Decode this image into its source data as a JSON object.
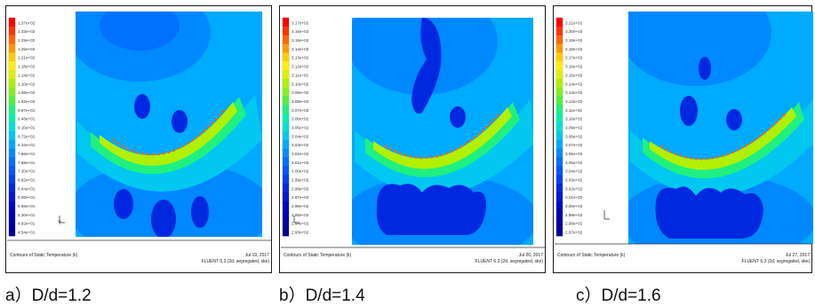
{
  "panels": [
    {
      "caption": "a）D/d=1.2",
      "footer_left": "Contours of Static Temperature (k)",
      "footer_date": "Jul 19, 2017",
      "footer_solver": "FLUENT 6.3 (2d, segregated, ske)",
      "legend_labels": [
        "1.37e+02",
        "1.33e+02",
        "1.29e+02",
        "1.25e+02",
        "1.21e+02",
        "1.18e+02",
        "1.14e+02",
        "1.10e+02",
        "1.06e+02",
        "1.02e+02",
        "9.87e+01",
        "9.48e+01",
        "9.10e+01",
        "8.72e+01",
        "8.34e+01",
        "7.96e+01",
        "7.58e+01",
        "7.20e+01",
        "6.82e+01",
        "6.44e+01",
        "6.06e+01",
        "5.68e+01",
        "5.30e+01",
        "4.92e+01",
        "4.54e+01"
      ]
    },
    {
      "caption": "b）D/d=1.4",
      "footer_left": "Contours of Static Temperature (k)",
      "footer_date": "Jul 20, 2017",
      "footer_solver": "FLUENT 6.3 (2d, segregated, ske)",
      "legend_labels": [
        "3.17e+02",
        "3.16e+02",
        "3.15e+02",
        "3.14e+02",
        "3.13e+02",
        "3.12e+02",
        "3.11e+02",
        "3.10e+02",
        "3.09e+02",
        "3.08e+02",
        "3.07e+02",
        "3.06e+02",
        "3.05e+02",
        "3.04e+02",
        "3.03e+02",
        "3.02e+02",
        "3.01e+02",
        "3.00e+02",
        "2.99e+02",
        "2.98e+02",
        "2.97e+02",
        "2.96e+02",
        "2.95e+02",
        "2.94e+02",
        "2.93e+02"
      ]
    },
    {
      "caption": "c）D/d=1.6",
      "footer_left": "Contours of Static Temperature (k)",
      "footer_date": "Jul 27, 2017",
      "footer_solver": "FLUENT 6.3 (2d, segregated, ske)",
      "legend_labels": [
        "3.21e+02",
        "3.20e+02",
        "3.19e+02",
        "3.18e+02",
        "3.17e+02",
        "3.16e+02",
        "3.15e+02",
        "3.14e+02",
        "3.13e+02",
        "3.12e+02",
        "3.11e+02",
        "3.10e+02",
        "3.09e+02",
        "3.08e+02",
        "3.07e+02",
        "3.06e+02",
        "3.05e+02",
        "3.04e+02",
        "3.03e+02",
        "3.02e+02",
        "3.01e+02",
        "3.00e+02",
        "2.99e+02",
        "2.98e+02",
        "2.97e+02"
      ]
    }
  ],
  "colormap": [
    "#ff0000",
    "#ff3300",
    "#ff6600",
    "#ff9900",
    "#ffcc00",
    "#ffee00",
    "#ddf000",
    "#b0f000",
    "#80f020",
    "#50f040",
    "#20f080",
    "#00f0b0",
    "#00e0d8",
    "#00c8f0",
    "#00aaff",
    "#008cff",
    "#0070ff",
    "#0058ff",
    "#0040f0",
    "#0028e0",
    "#0018d0",
    "#0008c0",
    "#0000b8",
    "#0000a8",
    "#000098"
  ]
}
